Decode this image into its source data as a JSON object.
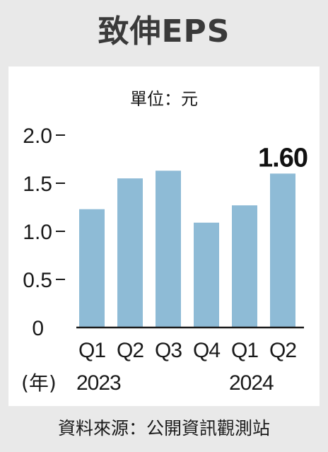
{
  "header": {
    "title": "致伸EPS"
  },
  "unit_label": "單位：元",
  "source": "資料來源：公開資訊觀測站",
  "chart_data": {
    "type": "bar",
    "title": "致伸EPS",
    "ylabel": "",
    "xlabel": "",
    "ylim": [
      0,
      2.0
    ],
    "yticks": [
      "0",
      "0.5",
      "1.0",
      "1.5",
      "2.0"
    ],
    "ytick_values": [
      0,
      0.5,
      1.0,
      1.5,
      2.0
    ],
    "categories": [
      "Q1",
      "Q2",
      "Q3",
      "Q4",
      "Q1",
      "Q2"
    ],
    "values": [
      1.23,
      1.55,
      1.63,
      1.09,
      1.27,
      1.6
    ],
    "year_prefix": "(年)",
    "year_labels": [
      "2023",
      "",
      "",
      "",
      "2024",
      ""
    ],
    "highlight_label": "1.60",
    "grid": false,
    "colors": {
      "bar": "#8ebbd6",
      "axis": "#1a1a1a",
      "background": "#ffffff"
    }
  }
}
